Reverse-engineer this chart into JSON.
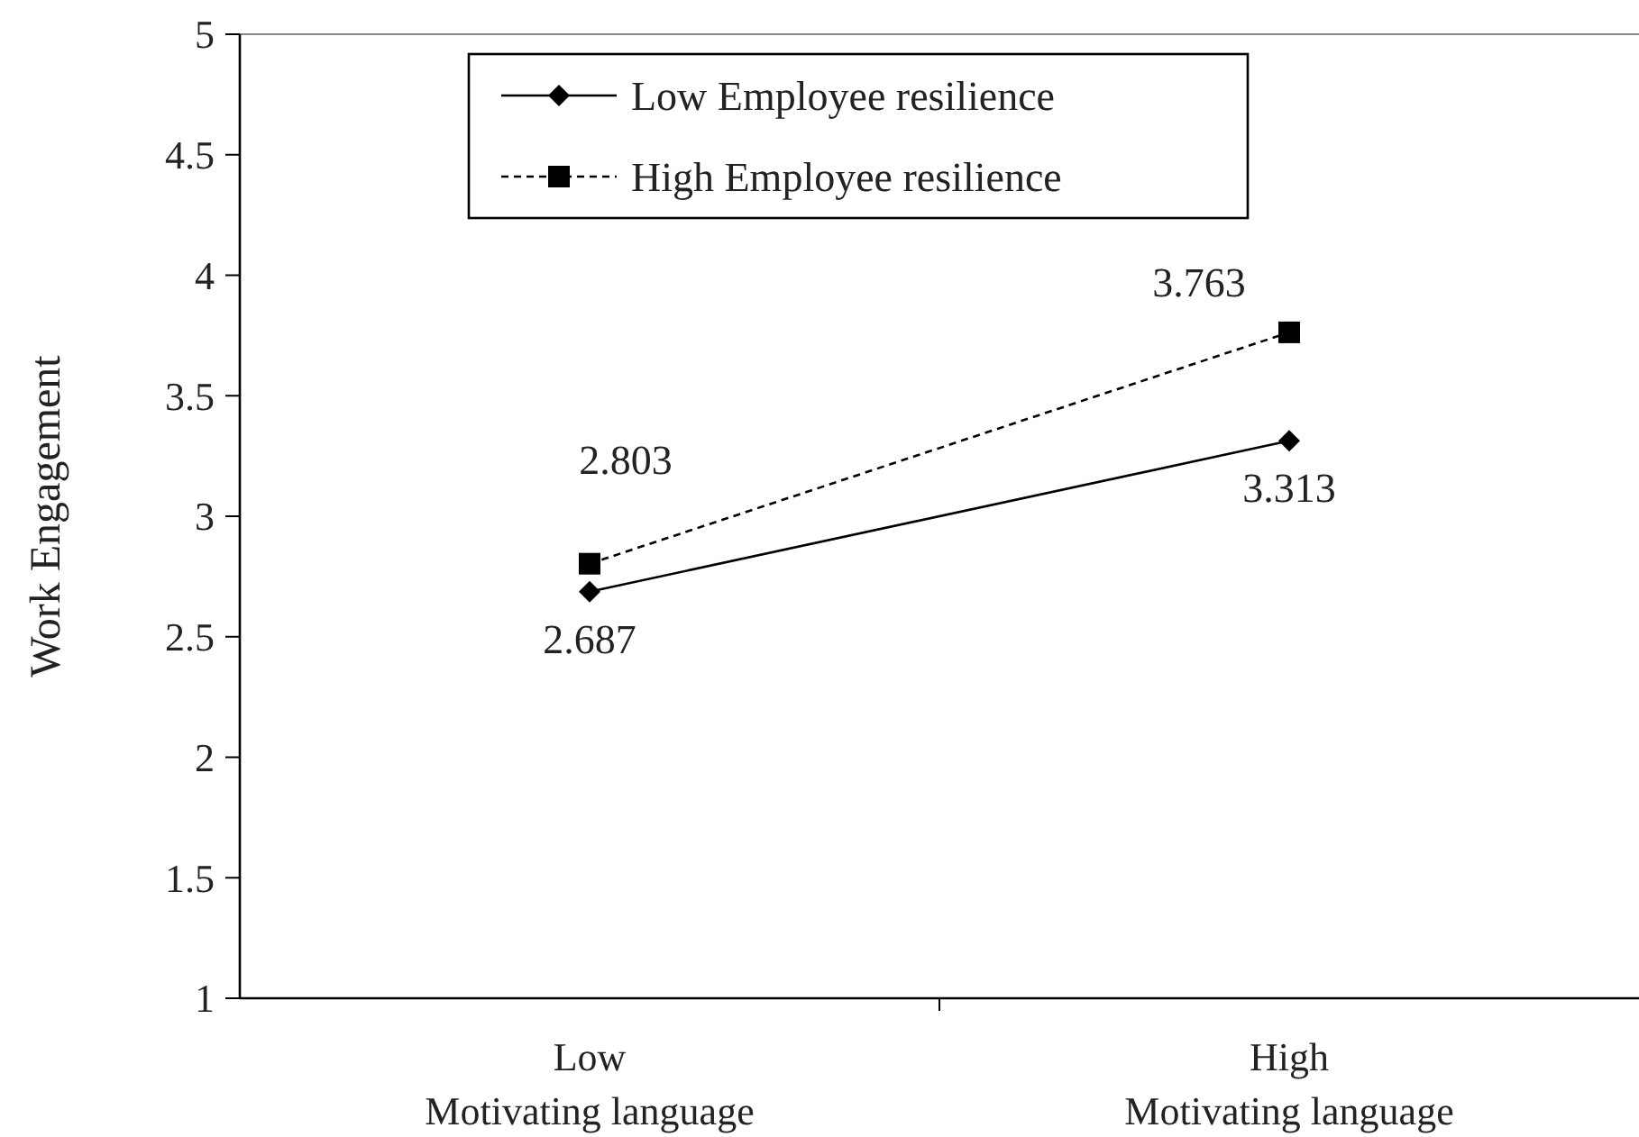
{
  "chart_data": {
    "type": "line",
    "ylabel": "Work Engagement",
    "categories": [
      "Low\nMotivating language",
      "High\nMotivating language"
    ],
    "series": [
      {
        "name": "Low Employee resilience",
        "color": "#000000",
        "values": [
          2.687,
          3.313
        ],
        "marker": "diamond",
        "line_style": "solid"
      },
      {
        "name": "High Employee resilience",
        "color": "#000000",
        "values": [
          2.803,
          3.763
        ],
        "marker": "square",
        "line_style": "dashed"
      }
    ],
    "ylim": [
      1,
      5
    ],
    "yticks": [
      1,
      1.5,
      2,
      2.5,
      3,
      3.5,
      4,
      4.5,
      5
    ],
    "data_labels": true,
    "legend": "top",
    "grid": false
  }
}
